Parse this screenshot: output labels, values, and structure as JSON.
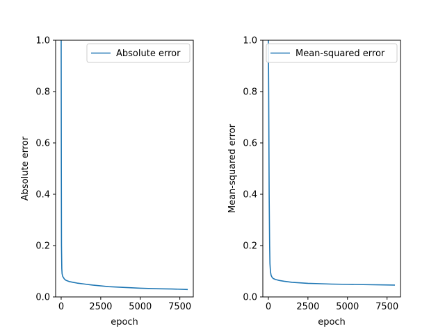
{
  "chart_data": [
    {
      "type": "line",
      "xlabel": "epoch",
      "ylabel": "Absolute error",
      "xlim": [
        -350,
        8350
      ],
      "ylim": [
        0,
        1
      ],
      "xticks": [
        0,
        2500,
        5000,
        7500
      ],
      "yticks": [
        0.0,
        0.2,
        0.4,
        0.6,
        0.8,
        1.0
      ],
      "grid": false,
      "legend_position": "top-right",
      "series": [
        {
          "name": "Absolute error",
          "color": "#1f77b4",
          "x": [
            0,
            10,
            20,
            40,
            60,
            100,
            150,
            200,
            300,
            500,
            750,
            1000,
            1500,
            2000,
            2500,
            3000,
            4000,
            5000,
            6000,
            7000,
            8000
          ],
          "y": [
            1.0,
            0.5,
            0.2,
            0.11,
            0.09,
            0.08,
            0.075,
            0.07,
            0.065,
            0.06,
            0.057,
            0.054,
            0.05,
            0.046,
            0.043,
            0.04,
            0.037,
            0.034,
            0.032,
            0.031,
            0.029
          ]
        }
      ]
    },
    {
      "type": "line",
      "xlabel": "epoch",
      "ylabel": "Mean-squared error",
      "xlim": [
        -350,
        8350
      ],
      "ylim": [
        0,
        1
      ],
      "xticks": [
        0,
        2500,
        5000,
        7500
      ],
      "yticks": [
        0.0,
        0.2,
        0.4,
        0.6,
        0.8,
        1.0
      ],
      "grid": false,
      "legend_position": "top-right",
      "series": [
        {
          "name": "Mean-squared error",
          "color": "#1f77b4",
          "x": [
            0,
            20,
            50,
            80,
            100,
            130,
            170,
            220,
            300,
            450,
            700,
            1000,
            1500,
            2000,
            2500,
            3000,
            4000,
            5000,
            6000,
            7000,
            8000
          ],
          "y": [
            1.0,
            0.8,
            0.4,
            0.2,
            0.13,
            0.1,
            0.085,
            0.078,
            0.072,
            0.068,
            0.064,
            0.061,
            0.057,
            0.055,
            0.053,
            0.052,
            0.05,
            0.049,
            0.048,
            0.047,
            0.046
          ]
        }
      ]
    }
  ]
}
